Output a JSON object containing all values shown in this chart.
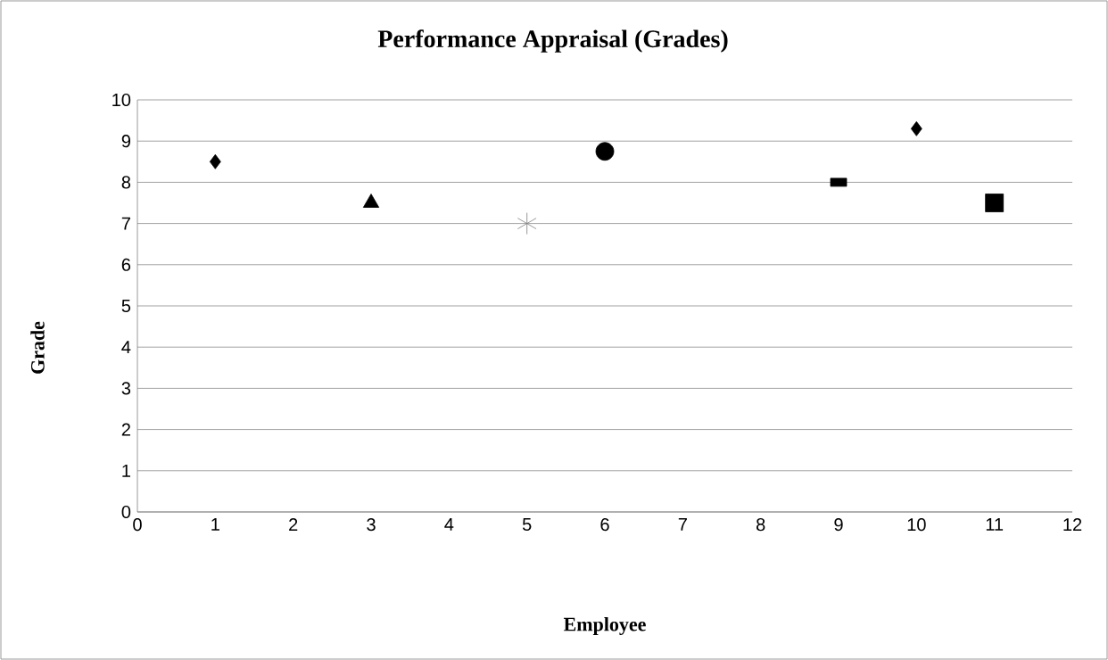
{
  "chart_data": {
    "type": "scatter",
    "title": "Performance Appraisal (Grades)",
    "xlabel": "Employee",
    "ylabel": "Grade",
    "xlim": [
      0,
      12
    ],
    "xticks": [
      0,
      1,
      2,
      3,
      4,
      5,
      6,
      7,
      8,
      9,
      10,
      11,
      12
    ],
    "ylim": [
      0,
      10
    ],
    "yticks": [
      0,
      1,
      2,
      3,
      4,
      5,
      6,
      7,
      8,
      9,
      10
    ],
    "grid": "y",
    "series": [
      {
        "x": [
          1,
          10
        ],
        "values": [
          8.5,
          9.3
        ],
        "color": "#000000",
        "marker": "diamond"
      },
      {
        "x": [
          3
        ],
        "values": [
          7.5
        ],
        "color": "#000000",
        "marker": "triangle"
      },
      {
        "x": [
          5
        ],
        "values": [
          7
        ],
        "color": "#808080",
        "marker": "cross"
      },
      {
        "x": [
          6
        ],
        "values": [
          8.75
        ],
        "color": "#000000",
        "marker": "circle"
      },
      {
        "x": [
          9
        ],
        "values": [
          8
        ],
        "color": "#000000"
      },
      {
        "x": [
          11
        ],
        "values": [
          7.5
        ],
        "color": "#000000",
        "marker": "square"
      }
    ]
  }
}
